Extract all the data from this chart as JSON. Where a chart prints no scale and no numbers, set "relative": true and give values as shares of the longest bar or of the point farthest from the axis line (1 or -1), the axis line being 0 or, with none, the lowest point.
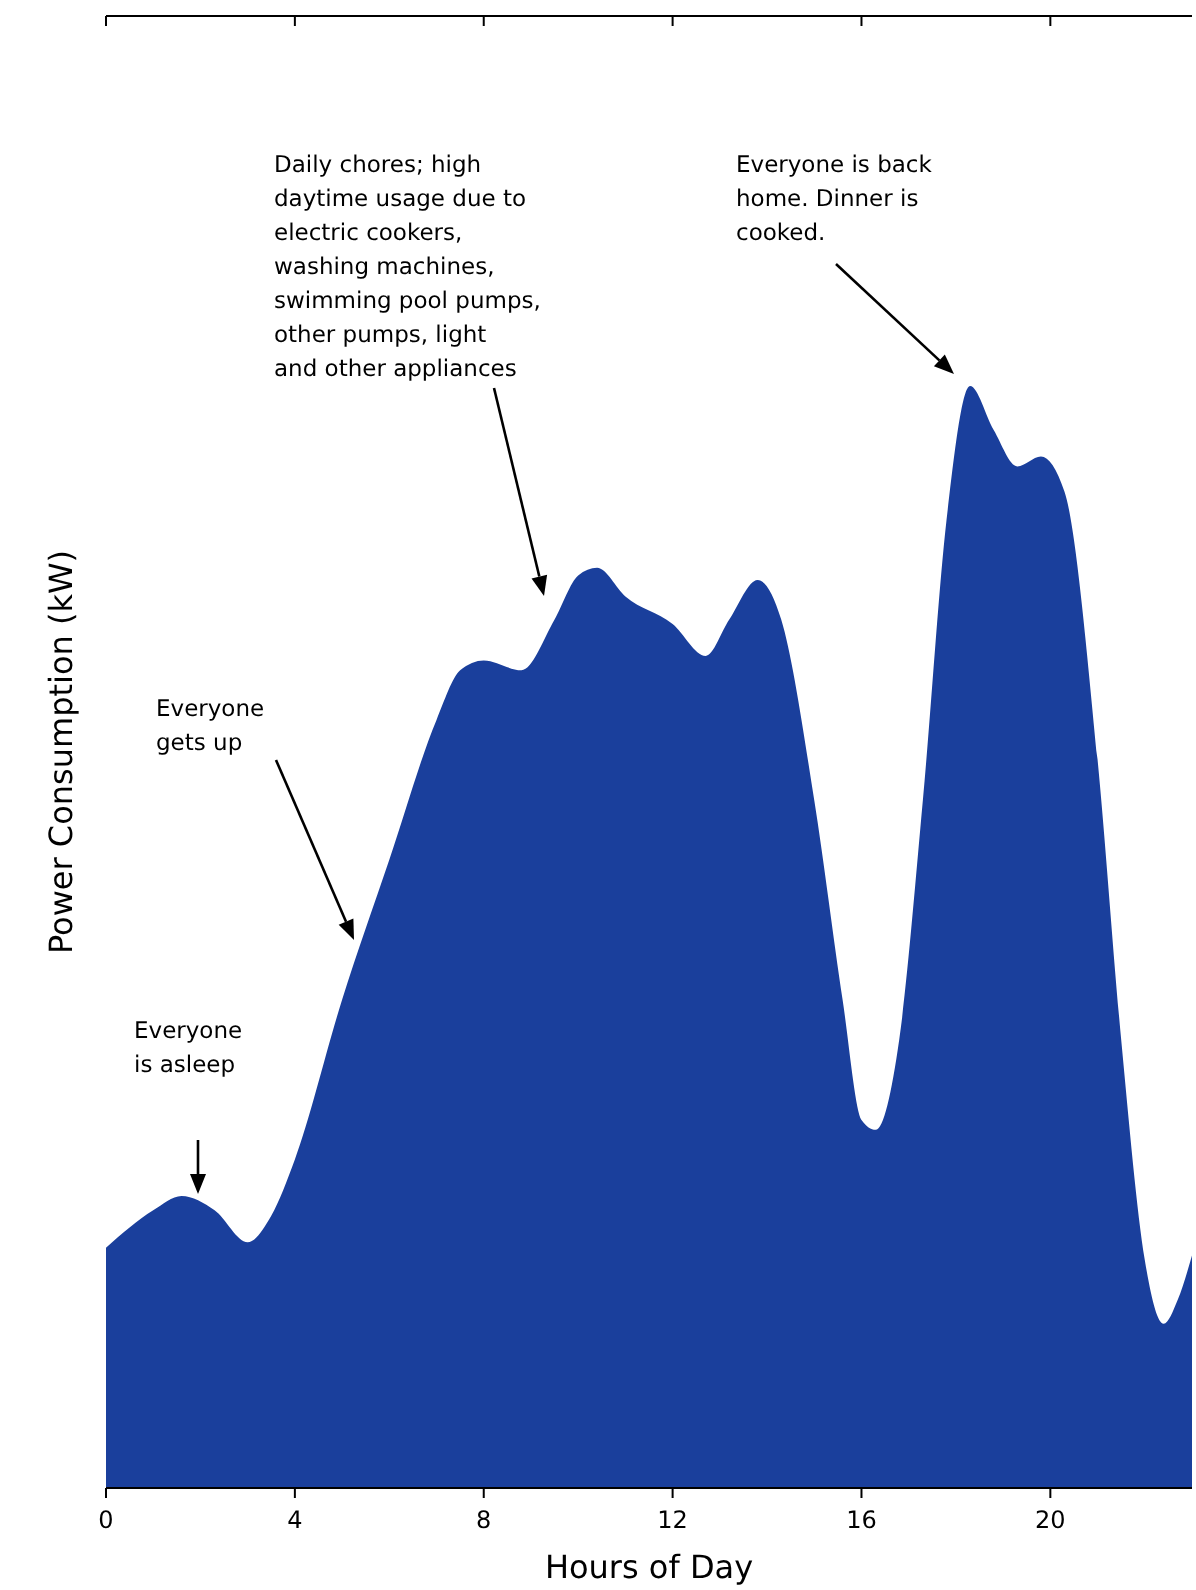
{
  "chart_data": {
    "type": "area",
    "relative": true,
    "xlabel": "Hours of Day",
    "ylabel": "Power Consumption (kW)",
    "xlim": [
      0,
      23
    ],
    "xticks": [
      0,
      4,
      8,
      12,
      16,
      20
    ],
    "series": [
      {
        "color": "#1a3f9c",
        "x": [
          0,
          1,
          1.6,
          2.3,
          3,
          3.5,
          4,
          5,
          6,
          7,
          7.5,
          8,
          8.8,
          9.5,
          10,
          10.4,
          11,
          12,
          12.7,
          13.2,
          13.8,
          14.3,
          15,
          15.6,
          16,
          16.3,
          16.8,
          17.3,
          17.8,
          18.3,
          18.8,
          19.3,
          19.8,
          20.3,
          21,
          21.5,
          22,
          22.4,
          22.7,
          23
        ],
        "values": [
          0.218,
          0.252,
          0.265,
          0.252,
          0.223,
          0.247,
          0.298,
          0.443,
          0.57,
          0.697,
          0.742,
          0.751,
          0.742,
          0.788,
          0.828,
          0.835,
          0.809,
          0.784,
          0.755,
          0.788,
          0.824,
          0.788,
          0.624,
          0.443,
          0.334,
          0.325,
          0.407,
          0.624,
          0.878,
          1,
          0.96,
          0.927,
          0.936,
          0.904,
          0.661,
          0.407,
          0.207,
          0.149,
          0.171,
          0.211
        ]
      }
    ],
    "annotations": [
      "Everyone is asleep",
      "Everyone gets up",
      "Daily chores; high daytime usage due to electric cookers, washing machines, swimming pool pumps, other pumps, light and other appliances",
      "Everyone is back home. Dinner is cooked."
    ]
  }
}
